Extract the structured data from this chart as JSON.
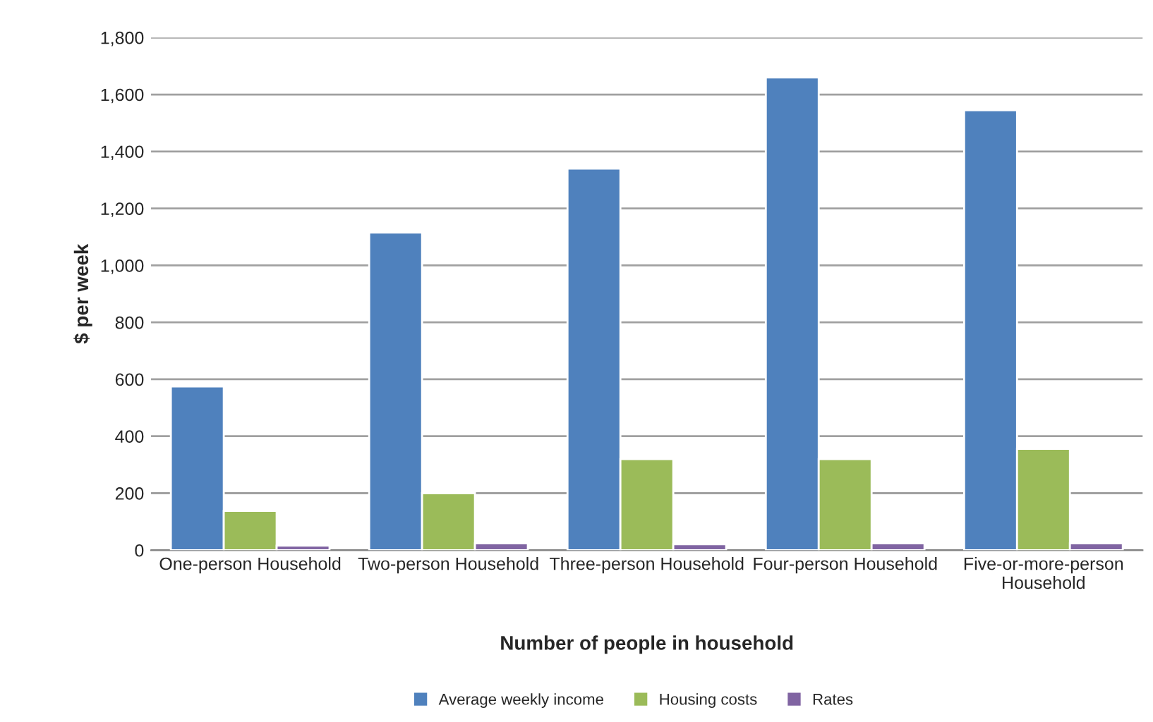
{
  "chart_data": {
    "type": "bar",
    "xlabel": "Number of people in household",
    "ylabel": "$ per week",
    "categories": [
      "One-person Household",
      "Two-person Household",
      "Three-person Household",
      "Four-person Household",
      "Five-or-more-person Household"
    ],
    "series": [
      {
        "name": "Average weekly income",
        "color": "#4f81bd",
        "values": [
          575,
          1115,
          1340,
          1660,
          1545
        ]
      },
      {
        "name": "Housing costs",
        "color": "#9bbb59",
        "values": [
          138,
          200,
          320,
          320,
          356
        ]
      },
      {
        "name": "Rates",
        "color": "#8064a2",
        "values": [
          16,
          24,
          21,
          24,
          24
        ]
      }
    ],
    "ylim": [
      0,
      1800
    ],
    "yticks": [
      {
        "value": 0,
        "label": "0"
      },
      {
        "value": 200,
        "label": "200"
      },
      {
        "value": 400,
        "label": "400"
      },
      {
        "value": 600,
        "label": "600"
      },
      {
        "value": 800,
        "label": "800"
      },
      {
        "value": 1000,
        "label": "1,000"
      },
      {
        "value": 1200,
        "label": "1,200"
      },
      {
        "value": 1400,
        "label": "1,400"
      },
      {
        "value": 1600,
        "label": "1,600"
      },
      {
        "value": 1800,
        "label": "1,800"
      }
    ],
    "grid": "y",
    "legend": "bottom"
  }
}
